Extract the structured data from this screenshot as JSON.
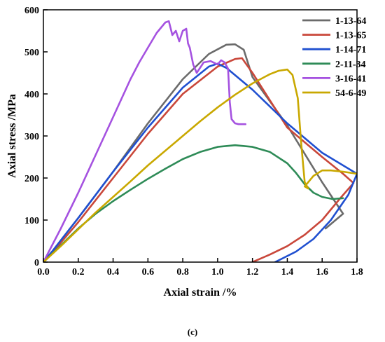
{
  "chart_data": {
    "type": "line",
    "xlabel": "Axial strain /%",
    "ylabel": "Axial stress /MPa",
    "xlim": [
      0.0,
      1.8
    ],
    "ylim": [
      0,
      600
    ],
    "x_ticks": [
      "0.0",
      "0.2",
      "0.4",
      "0.6",
      "0.8",
      "1.0",
      "1.2",
      "1.4",
      "1.6",
      "1.8"
    ],
    "y_ticks": [
      "0",
      "100",
      "200",
      "300",
      "400",
      "500",
      "600"
    ],
    "x_tick_values": [
      0.0,
      0.2,
      0.4,
      0.6,
      0.8,
      1.0,
      1.2,
      1.4,
      1.6,
      1.8
    ],
    "y_tick_values": [
      0,
      100,
      200,
      300,
      400,
      500,
      600
    ],
    "grid": false,
    "legend_position": "top-right",
    "caption": "(c)",
    "series": [
      {
        "name": "1-13-64",
        "color": "#6b6b6b",
        "x": [
          0.0,
          0.05,
          0.2,
          0.4,
          0.6,
          0.8,
          0.95,
          1.05,
          1.1,
          1.15,
          1.2,
          1.4,
          1.6,
          1.72,
          1.62
        ],
        "y": [
          0,
          25,
          105,
          215,
          330,
          435,
          495,
          517,
          518,
          505,
          440,
          325,
          190,
          115,
          80
        ]
      },
      {
        "name": "1-13-65",
        "color": "#c9473a",
        "x": [
          0.0,
          0.05,
          0.2,
          0.4,
          0.6,
          0.8,
          1.0,
          1.1,
          1.14,
          1.2,
          1.4,
          1.6,
          1.72,
          1.78,
          1.7,
          1.6,
          1.5,
          1.4,
          1.3,
          1.2
        ],
        "y": [
          0,
          22,
          95,
          200,
          305,
          400,
          465,
          483,
          485,
          450,
          320,
          250,
          210,
          188,
          150,
          100,
          65,
          38,
          18,
          0
        ]
      },
      {
        "name": "1-14-71",
        "color": "#1f4fd0",
        "x": [
          0.0,
          0.05,
          0.2,
          0.4,
          0.6,
          0.8,
          0.95,
          1.0,
          1.05,
          1.2,
          1.4,
          1.6,
          1.8,
          1.75,
          1.65,
          1.55,
          1.45,
          1.33
        ],
        "y": [
          0,
          25,
          105,
          215,
          320,
          415,
          465,
          472,
          462,
          410,
          330,
          260,
          210,
          160,
          100,
          55,
          25,
          0
        ]
      },
      {
        "name": "2-11-34",
        "color": "#2e8b57",
        "x": [
          0.0,
          0.1,
          0.2,
          0.3,
          0.4,
          0.5,
          0.6,
          0.7,
          0.8,
          0.9,
          1.0,
          1.1,
          1.2,
          1.3,
          1.4,
          1.45,
          1.5,
          1.55,
          1.6,
          1.66,
          1.72
        ],
        "y": [
          0,
          40,
          80,
          115,
          145,
          172,
          198,
          222,
          245,
          262,
          274,
          278,
          274,
          262,
          235,
          212,
          185,
          165,
          155,
          150,
          152
        ]
      },
      {
        "name": "3-16-41",
        "color": "#a552e0",
        "x": [
          0.0,
          0.1,
          0.2,
          0.3,
          0.4,
          0.5,
          0.55,
          0.6,
          0.65,
          0.7,
          0.72,
          0.74,
          0.76,
          0.78,
          0.8,
          0.82,
          0.83,
          0.84,
          0.86,
          0.88,
          0.92,
          0.96,
          1.0,
          1.02,
          1.04,
          1.06,
          1.07,
          1.08,
          1.1,
          1.12,
          1.16
        ],
        "y": [
          0,
          80,
          165,
          255,
          345,
          435,
          475,
          510,
          545,
          570,
          573,
          540,
          550,
          525,
          550,
          555,
          520,
          510,
          470,
          450,
          475,
          478,
          470,
          480,
          475,
          460,
          380,
          340,
          330,
          328,
          328
        ]
      },
      {
        "name": "54-6-49",
        "color": "#c9a800",
        "x": [
          0.0,
          0.1,
          0.2,
          0.3,
          0.4,
          0.5,
          0.6,
          0.7,
          0.8,
          0.9,
          1.0,
          1.1,
          1.2,
          1.3,
          1.35,
          1.4,
          1.43,
          1.46,
          1.48,
          1.5,
          1.52,
          1.5,
          1.55,
          1.6,
          1.65,
          1.72,
          1.8
        ],
        "y": [
          0,
          38,
          78,
          118,
          155,
          192,
          230,
          265,
          300,
          335,
          368,
          398,
          425,
          447,
          455,
          458,
          445,
          390,
          280,
          190,
          175,
          180,
          205,
          218,
          218,
          215,
          210
        ]
      }
    ]
  }
}
